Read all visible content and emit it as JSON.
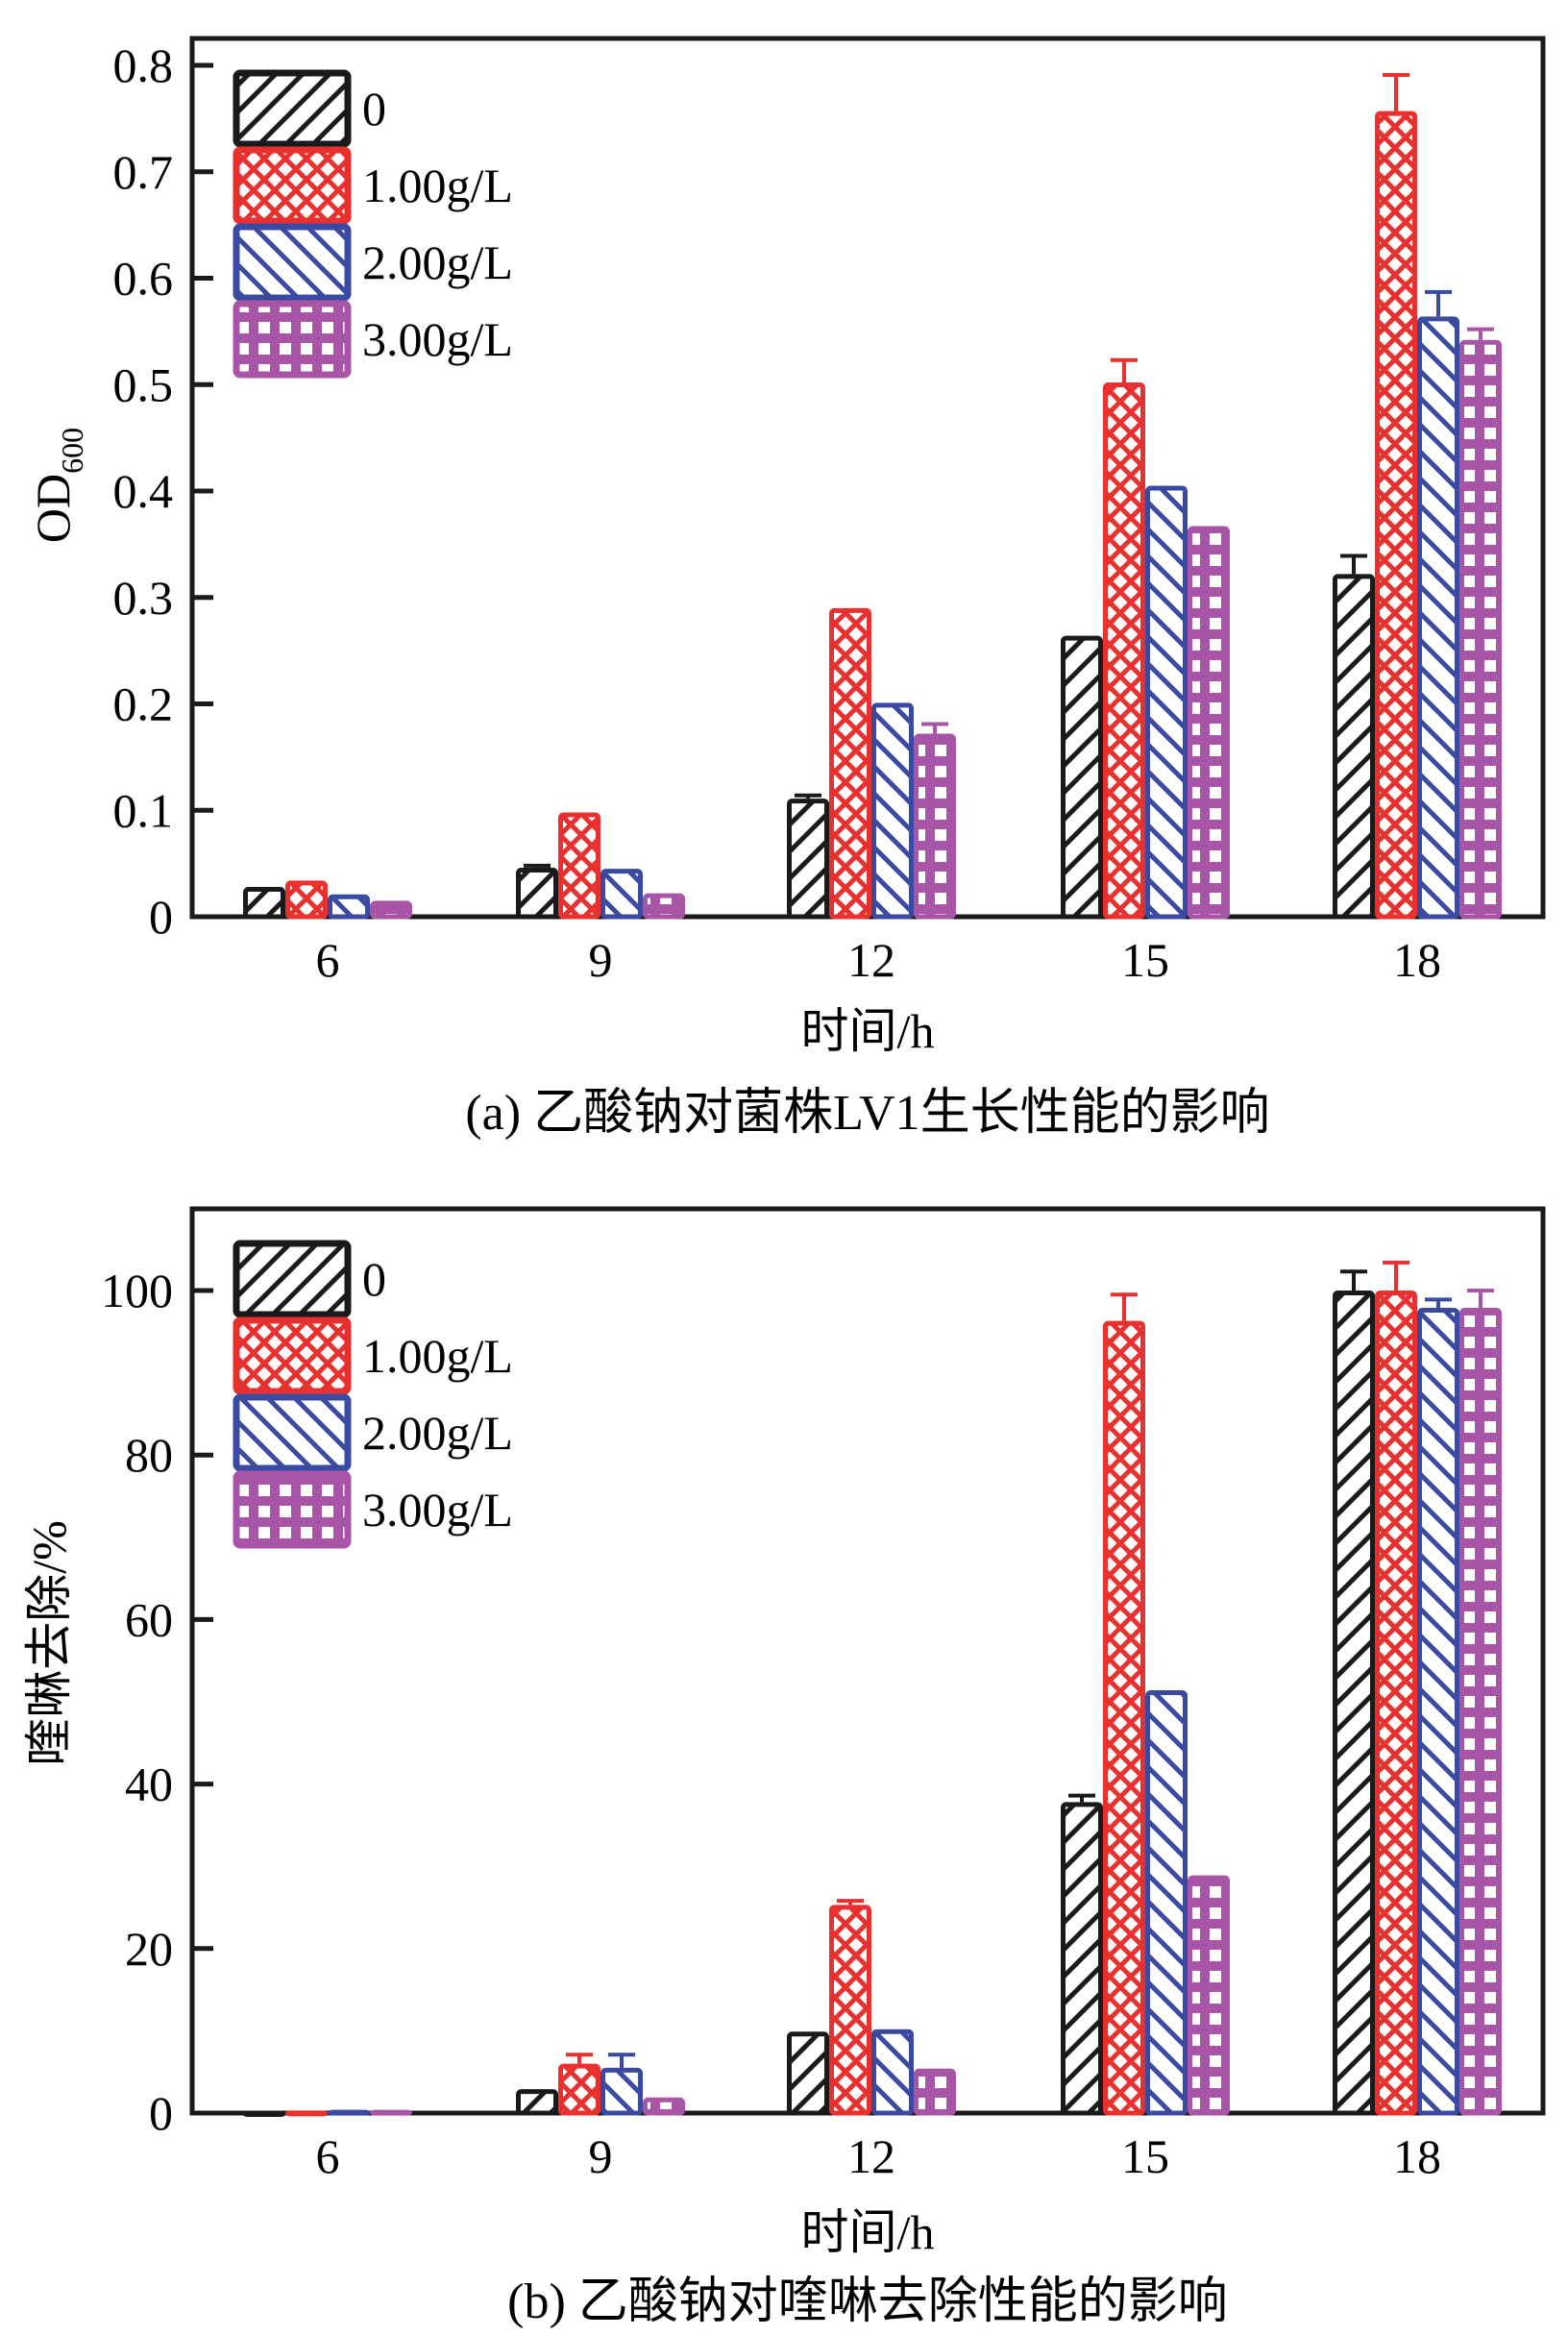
{
  "chart_data": [
    {
      "type": "bar",
      "panel": "a",
      "caption": "(a) 乙酸钠对菌株LV1生长性能的影响",
      "xlabel": "时间/h",
      "ylabel_main": "OD",
      "ylabel_sub": "600",
      "categories": [
        "6",
        "9",
        "12",
        "15",
        "18"
      ],
      "ylim": [
        0,
        0.8
      ],
      "yticks": [
        0,
        0.1,
        0.2,
        0.3,
        0.4,
        0.5,
        0.6,
        0.7,
        0.8
      ],
      "ytick_labels": [
        "0",
        "0.1",
        "0.2",
        "0.3",
        "0.4",
        "0.5",
        "0.6",
        "0.7",
        "0.8"
      ],
      "grid": false,
      "legend_position": "top-left",
      "series": [
        {
          "name": "0",
          "color": "#1a1a1a",
          "pattern": "forward-hatch",
          "values": [
            0.028,
            0.046,
            0.111,
            0.264,
            0.322
          ],
          "errors": [
            0.0,
            0.002,
            0.003,
            0.0,
            0.017
          ]
        },
        {
          "name": "1.00g/L",
          "color": "#e8312f",
          "pattern": "crosshatch",
          "values": [
            0.034,
            0.098,
            0.29,
            0.502,
            0.757
          ],
          "errors": [
            0.0,
            0.0,
            0.0,
            0.021,
            0.034
          ]
        },
        {
          "name": "2.00g/L",
          "color": "#3a4aa0",
          "pattern": "back-hatch",
          "values": [
            0.021,
            0.045,
            0.201,
            0.405,
            0.564
          ],
          "errors": [
            0.0,
            0.0,
            0.0,
            0.0,
            0.023
          ]
        },
        {
          "name": "3.00g/L",
          "color": "#a855a8",
          "pattern": "grid",
          "values": [
            0.015,
            0.022,
            0.172,
            0.367,
            0.542
          ],
          "errors": [
            0.0,
            0.0,
            0.009,
            0.0,
            0.01
          ]
        }
      ]
    },
    {
      "type": "bar",
      "panel": "b",
      "caption": "(b) 乙酸钠对喹啉去除性能的影响",
      "xlabel": "时间/h",
      "ylabel_main": "喹啉去除/%",
      "ylabel_sub": "",
      "categories": [
        "6",
        "9",
        "12",
        "15",
        "18"
      ],
      "ylim": [
        0,
        110
      ],
      "yticks": [
        0,
        20,
        40,
        60,
        80,
        100
      ],
      "ytick_labels": [
        "0",
        "20",
        "40",
        "60",
        "80",
        "100"
      ],
      "grid": false,
      "legend_position": "top-left",
      "series": [
        {
          "name": "0",
          "color": "#1a1a1a",
          "pattern": "forward-hatch",
          "values": [
            0.0,
            2.9,
            9.9,
            37.8,
            100.0
          ],
          "errors": [
            0.0,
            0.0,
            0.0,
            0.8,
            2.3
          ]
        },
        {
          "name": "1.00g/L",
          "color": "#e8312f",
          "pattern": "crosshatch",
          "values": [
            0.3,
            6.0,
            25.3,
            96.3,
            100.0
          ],
          "errors": [
            0.0,
            1.1,
            0.5,
            3.2,
            3.4
          ]
        },
        {
          "name": "2.00g/L",
          "color": "#3a4aa0",
          "pattern": "back-hatch",
          "values": [
            0.4,
            5.5,
            10.2,
            51.4,
            97.9
          ],
          "errors": [
            0.0,
            1.6,
            0.0,
            0.0,
            1.0
          ]
        },
        {
          "name": "3.00g/L",
          "color": "#a855a8",
          "pattern": "grid",
          "values": [
            0.4,
            1.9,
            5.4,
            28.9,
            97.9
          ],
          "errors": [
            0.0,
            0.0,
            0.0,
            0.0,
            2.1
          ]
        }
      ]
    }
  ]
}
